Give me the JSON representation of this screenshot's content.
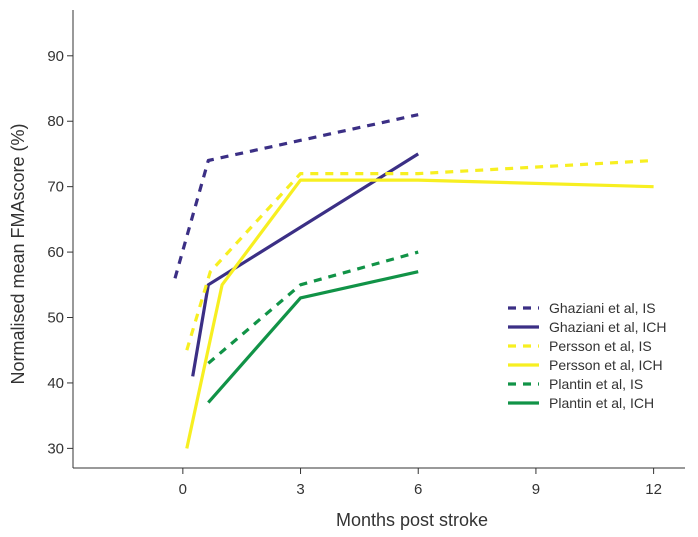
{
  "chart_data": {
    "type": "line",
    "title": "",
    "xlabel": "Months post stroke",
    "ylabel": "Normalised mean FMAscore (%)",
    "xlim": [
      -2.8,
      12.8
    ],
    "ylim": [
      27,
      97
    ],
    "xticks": [
      0,
      3,
      6,
      9,
      12
    ],
    "yticks": [
      30,
      40,
      50,
      60,
      70,
      80,
      90
    ],
    "grid": false,
    "legend_position": "right",
    "series": [
      {
        "name": "Ghaziani et al, IS",
        "color": "#3b2f85",
        "dash": "dashed",
        "x": [
          -0.2,
          0.65,
          6
        ],
        "y": [
          56,
          74,
          81
        ]
      },
      {
        "name": "Ghaziani et al, ICH",
        "color": "#3b2f85",
        "dash": "solid",
        "x": [
          0.25,
          0.65,
          6
        ],
        "y": [
          41,
          55,
          75
        ]
      },
      {
        "name": "Persson et al, IS",
        "color": "#f7ef21",
        "dash": "dashed",
        "x": [
          0.1,
          0.7,
          3,
          6,
          12
        ],
        "y": [
          45,
          57,
          72,
          72,
          74
        ]
      },
      {
        "name": "Persson et al, ICH",
        "color": "#f7ef21",
        "dash": "solid",
        "x": [
          0.1,
          1,
          3,
          6,
          12
        ],
        "y": [
          30,
          55,
          71,
          71,
          70
        ]
      },
      {
        "name": "Plantin et al, IS",
        "color": "#119347",
        "dash": "dashed",
        "x": [
          0.65,
          3,
          6
        ],
        "y": [
          43,
          55,
          60
        ]
      },
      {
        "name": "Plantin et al, ICH",
        "color": "#119347",
        "dash": "solid",
        "x": [
          0.65,
          3,
          6
        ],
        "y": [
          37,
          53,
          57
        ]
      }
    ]
  }
}
